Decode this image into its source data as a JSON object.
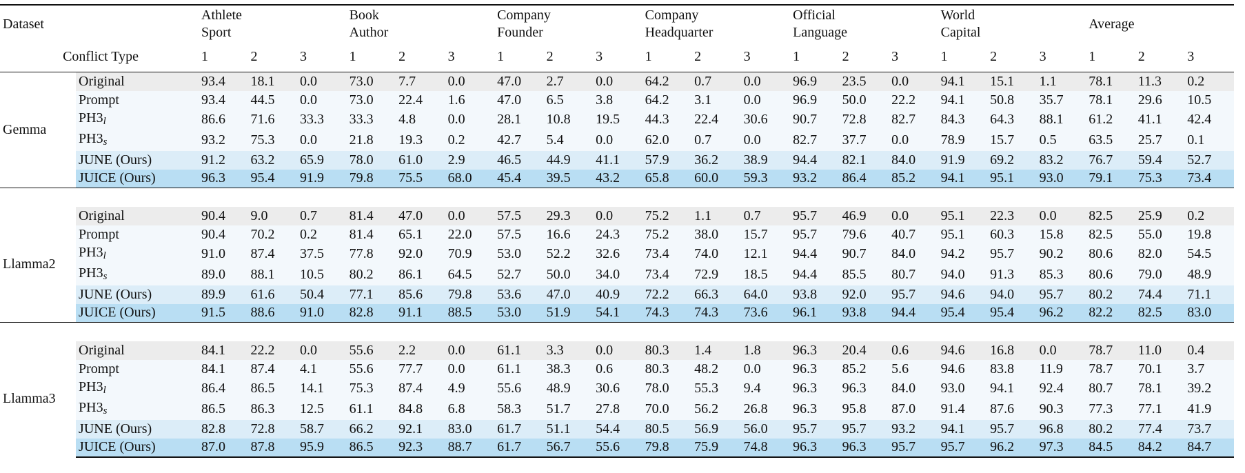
{
  "header": {
    "dataset_label": "Dataset",
    "conflict_label": "Conflict Type",
    "datasets": [
      {
        "line1": "Athlete",
        "line2": "Sport"
      },
      {
        "line1": "Book",
        "line2": "Author"
      },
      {
        "line1": "Company",
        "line2": "Founder"
      },
      {
        "line1": "Company",
        "line2": "Headquarter"
      },
      {
        "line1": "Official",
        "line2": "Language"
      },
      {
        "line1": "World",
        "line2": "Capital"
      },
      {
        "line1": "Average",
        "line2": ""
      }
    ],
    "conflict_types": [
      "1",
      "2",
      "3"
    ]
  },
  "method_labels": {
    "original": "Original",
    "prompt": "Prompt",
    "ph3": "PH3",
    "ph3_l_sub": "l",
    "ph3_s_sub": "s",
    "june_a": "J",
    "june_b": "U",
    "june_c": "N",
    "june_d": "E",
    "juice_a": "J",
    "juice_b": "UICE",
    "ours": "(Ours)"
  },
  "groups": [
    {
      "model": "Gemma",
      "rows": [
        {
          "method": "original",
          "values": [
            "93.4",
            "18.1",
            "0.0",
            "73.0",
            "7.7",
            "0.0",
            "47.0",
            "2.7",
            "0.0",
            "64.2",
            "0.7",
            "0.0",
            "96.9",
            "23.5",
            "0.0",
            "94.1",
            "15.1",
            "1.1",
            "78.1",
            "11.3",
            "0.2"
          ],
          "bold": [
            6,
            12,
            15
          ]
        },
        {
          "method": "prompt",
          "values": [
            "93.4",
            "44.5",
            "0.0",
            "73.0",
            "22.4",
            "1.6",
            "47.0",
            "6.5",
            "3.8",
            "64.2",
            "3.1",
            "0.0",
            "96.9",
            "50.0",
            "22.2",
            "94.1",
            "50.8",
            "35.7",
            "78.1",
            "29.6",
            "10.5"
          ],
          "bold": [
            6,
            12,
            15
          ]
        },
        {
          "method": "ph3l",
          "values": [
            "86.6",
            "71.6",
            "33.3",
            "33.3",
            "4.8",
            "0.0",
            "28.1",
            "10.8",
            "19.5",
            "44.3",
            "22.4",
            "30.6",
            "90.7",
            "72.8",
            "82.7",
            "84.3",
            "64.3",
            "88.1",
            "61.2",
            "41.1",
            "42.4"
          ],
          "bold": []
        },
        {
          "method": "ph3s",
          "values": [
            "93.2",
            "75.3",
            "0.0",
            "21.8",
            "19.3",
            "0.2",
            "42.7",
            "5.4",
            "0.0",
            "62.0",
            "0.7",
            "0.0",
            "82.7",
            "37.7",
            "0.0",
            "78.9",
            "15.7",
            "0.5",
            "63.5",
            "25.7",
            "0.1"
          ],
          "bold": []
        },
        {
          "method": "june",
          "values": [
            "91.2",
            "63.2",
            "65.9",
            "78.0",
            "61.0",
            "2.9",
            "46.5",
            "44.9",
            "41.1",
            "57.9",
            "36.2",
            "38.9",
            "94.4",
            "82.1",
            "84.0",
            "91.9",
            "69.2",
            "83.2",
            "76.7",
            "59.4",
            "52.7"
          ],
          "bold": [
            7
          ]
        },
        {
          "method": "juice",
          "values": [
            "96.3",
            "95.4",
            "91.9",
            "79.8",
            "75.5",
            "68.0",
            "45.4",
            "39.5",
            "43.2",
            "65.8",
            "60.0",
            "59.3",
            "93.2",
            "86.4",
            "85.2",
            "94.1",
            "95.1",
            "93.0",
            "79.1",
            "75.3",
            "73.4"
          ],
          "bold": [
            0,
            1,
            2,
            3,
            4,
            5,
            8,
            9,
            10,
            11,
            13,
            14,
            15,
            16,
            17,
            18,
            19,
            20
          ]
        }
      ]
    },
    {
      "model": "Llamma2",
      "rows": [
        {
          "method": "original",
          "values": [
            "90.4",
            "9.0",
            "0.7",
            "81.4",
            "47.0",
            "0.0",
            "57.5",
            "29.3",
            "0.0",
            "75.2",
            "1.1",
            "0.7",
            "95.7",
            "46.9",
            "0.0",
            "95.1",
            "22.3",
            "0.0",
            "82.5",
            "25.9",
            "0.2"
          ],
          "bold": [
            6,
            9,
            18
          ]
        },
        {
          "method": "prompt",
          "values": [
            "90.4",
            "70.2",
            "0.2",
            "81.4",
            "65.1",
            "22.0",
            "57.5",
            "16.6",
            "24.3",
            "75.2",
            "38.0",
            "15.7",
            "95.7",
            "79.6",
            "40.7",
            "95.1",
            "60.3",
            "15.8",
            "82.5",
            "55.0",
            "19.8"
          ],
          "bold": [
            6,
            9,
            18
          ]
        },
        {
          "method": "ph3l",
          "values": [
            "91.0",
            "87.4",
            "37.5",
            "77.8",
            "92.0",
            "70.9",
            "53.0",
            "52.2",
            "32.6",
            "73.4",
            "74.0",
            "12.1",
            "94.4",
            "90.7",
            "84.0",
            "94.2",
            "95.7",
            "90.2",
            "80.6",
            "82.0",
            "54.5"
          ],
          "bold": [
            7,
            16
          ]
        },
        {
          "method": "ph3s",
          "values": [
            "89.0",
            "88.1",
            "10.5",
            "80.2",
            "86.1",
            "64.5",
            "52.7",
            "50.0",
            "34.0",
            "73.4",
            "72.9",
            "18.5",
            "94.4",
            "85.5",
            "80.7",
            "94.0",
            "91.3",
            "85.3",
            "80.6",
            "79.0",
            "48.9"
          ],
          "bold": []
        },
        {
          "method": "june",
          "values": [
            "89.9",
            "61.6",
            "50.4",
            "77.1",
            "85.6",
            "79.8",
            "53.6",
            "47.0",
            "40.9",
            "72.2",
            "66.3",
            "64.0",
            "93.8",
            "92.0",
            "95.7",
            "94.6",
            "94.0",
            "95.7",
            "80.2",
            "74.4",
            "71.1"
          ],
          "bold": []
        },
        {
          "method": "juice",
          "values": [
            "91.5",
            "88.6",
            "91.0",
            "82.8",
            "91.1",
            "88.5",
            "53.0",
            "51.9",
            "54.1",
            "74.3",
            "74.3",
            "73.6",
            "96.1",
            "93.8",
            "94.4",
            "95.4",
            "95.4",
            "96.2",
            "82.2",
            "82.5",
            "83.0"
          ],
          "bold": [
            0,
            1,
            2,
            3,
            4,
            5,
            8,
            10,
            11,
            12,
            13,
            14,
            15,
            17,
            19,
            20
          ]
        }
      ]
    },
    {
      "model": "Llamma3",
      "rows": [
        {
          "method": "original",
          "values": [
            "84.1",
            "22.2",
            "0.0",
            "55.6",
            "2.2",
            "0.0",
            "61.1",
            "3.3",
            "0.0",
            "80.3",
            "1.4",
            "1.8",
            "96.3",
            "20.4",
            "0.6",
            "94.6",
            "16.8",
            "0.0",
            "78.7",
            "11.0",
            "0.4"
          ],
          "bold": []
        },
        {
          "method": "prompt",
          "values": [
            "84.1",
            "87.4",
            "4.1",
            "55.6",
            "77.7",
            "0.0",
            "61.1",
            "38.3",
            "0.6",
            "80.3",
            "48.2",
            "0.0",
            "96.3",
            "85.2",
            "5.6",
            "94.6",
            "83.8",
            "11.9",
            "78.7",
            "70.1",
            "3.7"
          ],
          "bold": []
        },
        {
          "method": "ph3l",
          "values": [
            "86.4",
            "86.5",
            "14.1",
            "75.3",
            "87.4",
            "4.9",
            "55.6",
            "48.9",
            "30.6",
            "78.0",
            "55.3",
            "9.4",
            "96.3",
            "96.3",
            "84.0",
            "93.0",
            "94.1",
            "92.4",
            "80.7",
            "78.1",
            "39.2"
          ],
          "bold": [
            13
          ]
        },
        {
          "method": "ph3s",
          "values": [
            "86.5",
            "86.3",
            "12.5",
            "61.1",
            "84.8",
            "6.8",
            "58.3",
            "51.7",
            "27.8",
            "70.0",
            "56.2",
            "26.8",
            "96.3",
            "95.8",
            "87.0",
            "91.4",
            "87.6",
            "90.3",
            "77.3",
            "77.1",
            "41.9"
          ],
          "bold": []
        },
        {
          "method": "june",
          "values": [
            "82.8",
            "72.8",
            "58.7",
            "66.2",
            "92.1",
            "83.0",
            "61.7",
            "51.1",
            "54.4",
            "80.5",
            "56.9",
            "56.0",
            "95.7",
            "95.7",
            "93.2",
            "94.1",
            "95.7",
            "96.8",
            "80.2",
            "77.4",
            "73.7"
          ],
          "bold": [
            6,
            9
          ]
        },
        {
          "method": "juice",
          "values": [
            "87.0",
            "87.8",
            "95.9",
            "86.5",
            "92.3",
            "88.7",
            "61.7",
            "56.7",
            "55.6",
            "79.8",
            "75.9",
            "74.8",
            "96.3",
            "96.3",
            "95.7",
            "95.7",
            "96.2",
            "97.3",
            "84.5",
            "84.2",
            "84.7"
          ],
          "bold": [
            0,
            1,
            2,
            3,
            4,
            5,
            6,
            7,
            8,
            10,
            11,
            12,
            13,
            14,
            15,
            16,
            17,
            18,
            19,
            20
          ]
        }
      ]
    }
  ]
}
